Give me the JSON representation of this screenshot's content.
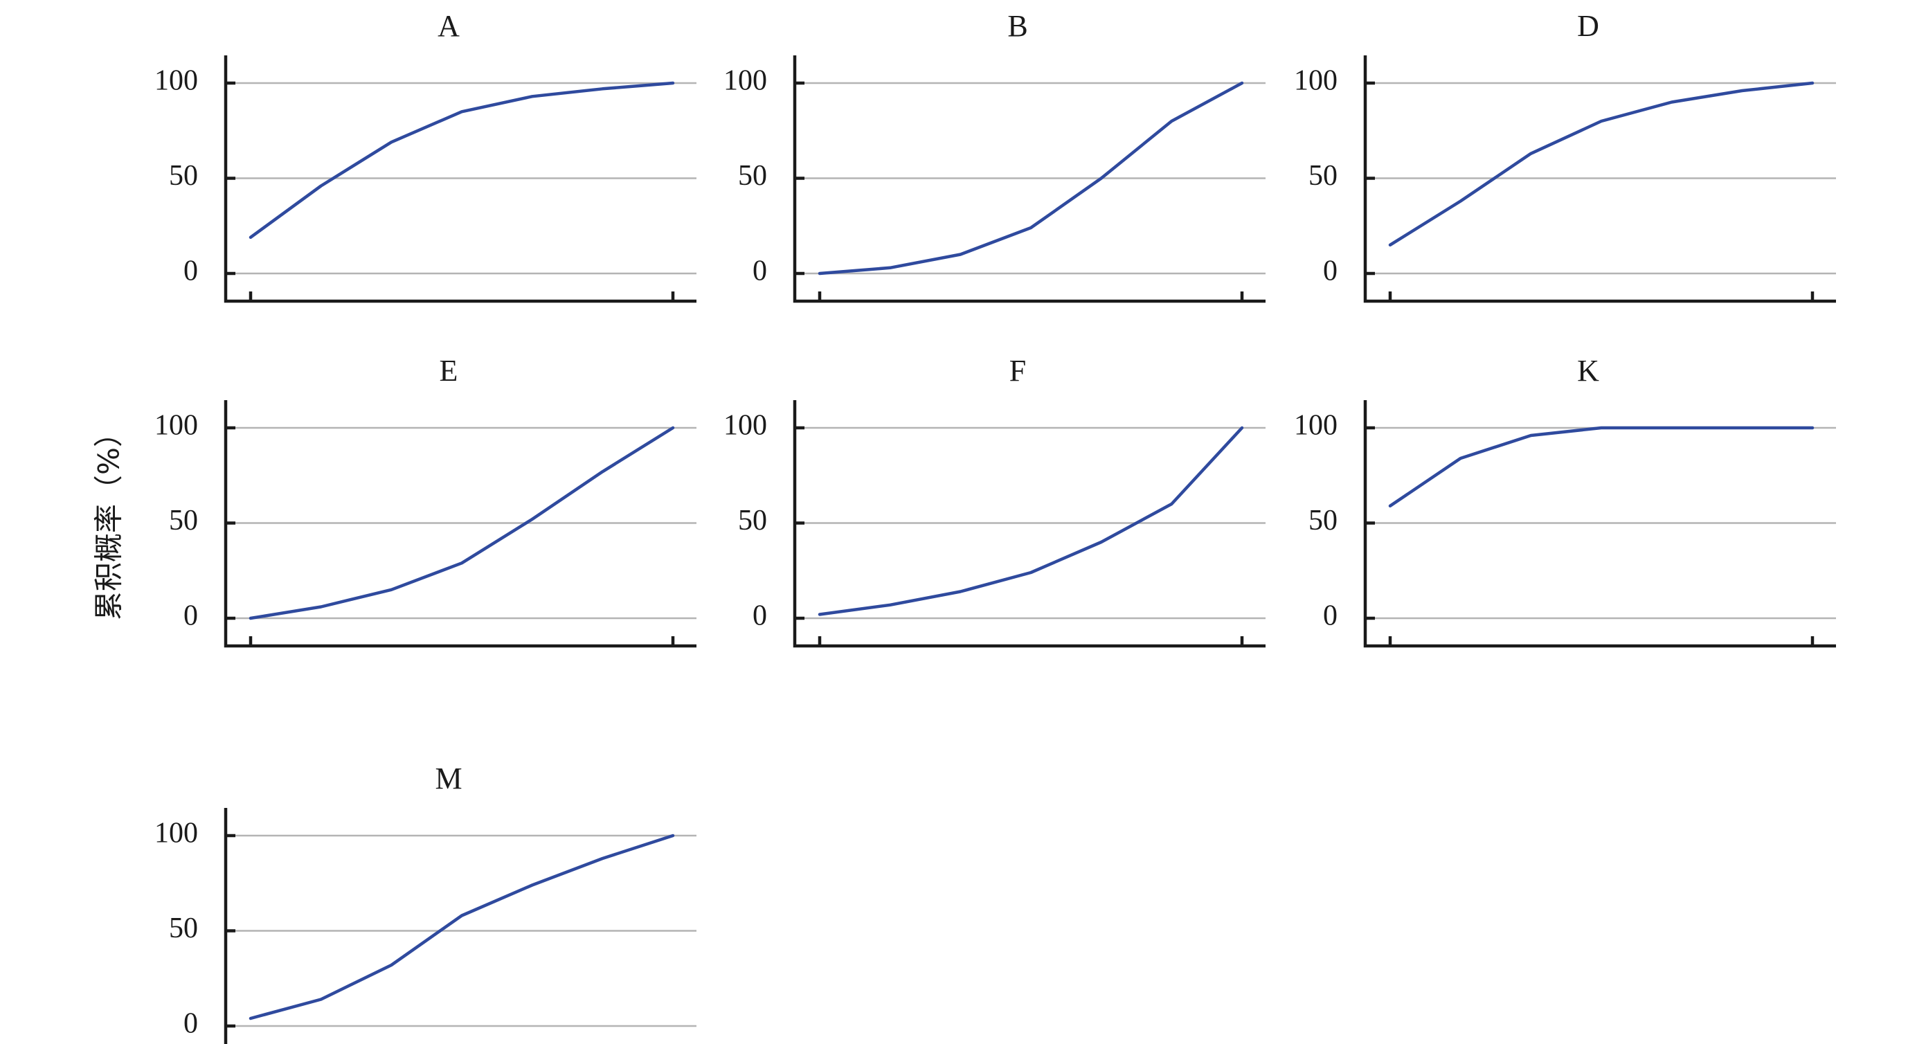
{
  "figure": {
    "ylabel": "累积概率（%）"
  },
  "style": {
    "line_color": "#2f4a9e",
    "grid_color": "#b4b4b4",
    "axis_color": "#1a1a1a"
  },
  "chart_data": [
    {
      "type": "line",
      "title": "A",
      "ylim": [
        0,
        115
      ],
      "yticks": [
        "0",
        "50",
        "100"
      ],
      "grid": "horizontal",
      "series": [
        {
          "values": [
            19,
            46,
            69,
            85,
            93,
            97,
            100
          ]
        }
      ]
    },
    {
      "type": "line",
      "title": "B",
      "ylim": [
        0,
        115
      ],
      "yticks": [
        "0",
        "50",
        "100"
      ],
      "grid": "horizontal",
      "series": [
        {
          "values": [
            0,
            3,
            10,
            24,
            50,
            80,
            100
          ]
        }
      ]
    },
    {
      "type": "line",
      "title": "D",
      "ylim": [
        0,
        115
      ],
      "yticks": [
        "0",
        "50",
        "100"
      ],
      "grid": "horizontal",
      "series": [
        {
          "values": [
            15,
            38,
            63,
            80,
            90,
            96,
            100
          ]
        }
      ]
    },
    {
      "type": "line",
      "title": "E",
      "ylim": [
        0,
        115
      ],
      "yticks": [
        "0",
        "50",
        "100"
      ],
      "grid": "horizontal",
      "series": [
        {
          "values": [
            0,
            6,
            15,
            29,
            52,
            77,
            100
          ]
        }
      ]
    },
    {
      "type": "line",
      "title": "F",
      "ylim": [
        0,
        115
      ],
      "yticks": [
        "0",
        "50",
        "100"
      ],
      "grid": "horizontal",
      "series": [
        {
          "values": [
            2,
            7,
            14,
            24,
            40,
            60,
            100
          ]
        }
      ]
    },
    {
      "type": "line",
      "title": "K",
      "ylim": [
        0,
        115
      ],
      "yticks": [
        "0",
        "50",
        "100"
      ],
      "grid": "horizontal",
      "series": [
        {
          "values": [
            59,
            84,
            96,
            100,
            100,
            100,
            100
          ]
        }
      ]
    },
    {
      "type": "line",
      "title": "M",
      "ylim": [
        0,
        115
      ],
      "yticks": [
        "0",
        "50",
        "100"
      ],
      "grid": "horizontal",
      "series": [
        {
          "values": [
            4,
            14,
            32,
            58,
            74,
            88,
            100
          ]
        }
      ]
    }
  ]
}
